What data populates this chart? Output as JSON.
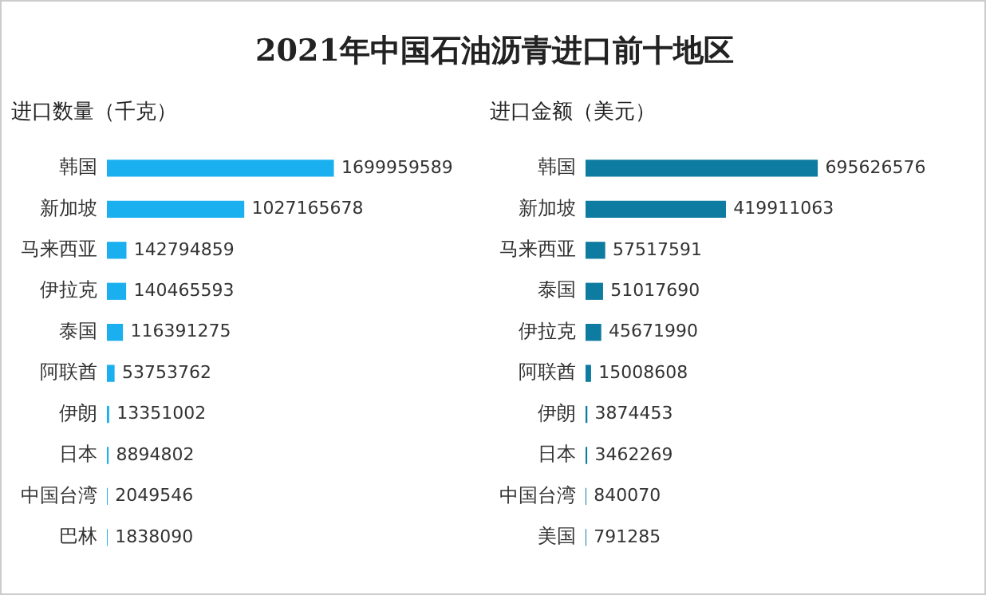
{
  "chart_data": [
    {
      "type": "bar",
      "orientation": "horizontal",
      "title": "2021年中国石油沥青进口前十地区",
      "subtitle": "进口数量（千克）",
      "categories": [
        "韩国",
        "新加坡",
        "马来西亚",
        "伊拉克",
        "泰国",
        "阿联酋",
        "伊朗",
        "日本",
        "中国台湾",
        "巴林"
      ],
      "values": [
        1699959589,
        1027165678,
        142794859,
        140465593,
        116391275,
        53753762,
        13351002,
        8894802,
        2049546,
        1838090
      ],
      "color": "#1ab0f0",
      "data_labels": true,
      "tick_labels": "y",
      "grid": false,
      "legend": false
    },
    {
      "type": "bar",
      "orientation": "horizontal",
      "subtitle": "进口金额（美元）",
      "categories": [
        "韩国",
        "新加坡",
        "马来西亚",
        "泰国",
        "伊拉克",
        "阿联酋",
        "伊朗",
        "日本",
        "中国台湾",
        "美国"
      ],
      "values": [
        695626576,
        419911063,
        57517591,
        51017690,
        45671990,
        15008608,
        3874453,
        3462269,
        840070,
        791285
      ],
      "color": "#0e7ba0",
      "data_labels": true,
      "tick_labels": "y",
      "grid": false,
      "legend": false
    }
  ]
}
